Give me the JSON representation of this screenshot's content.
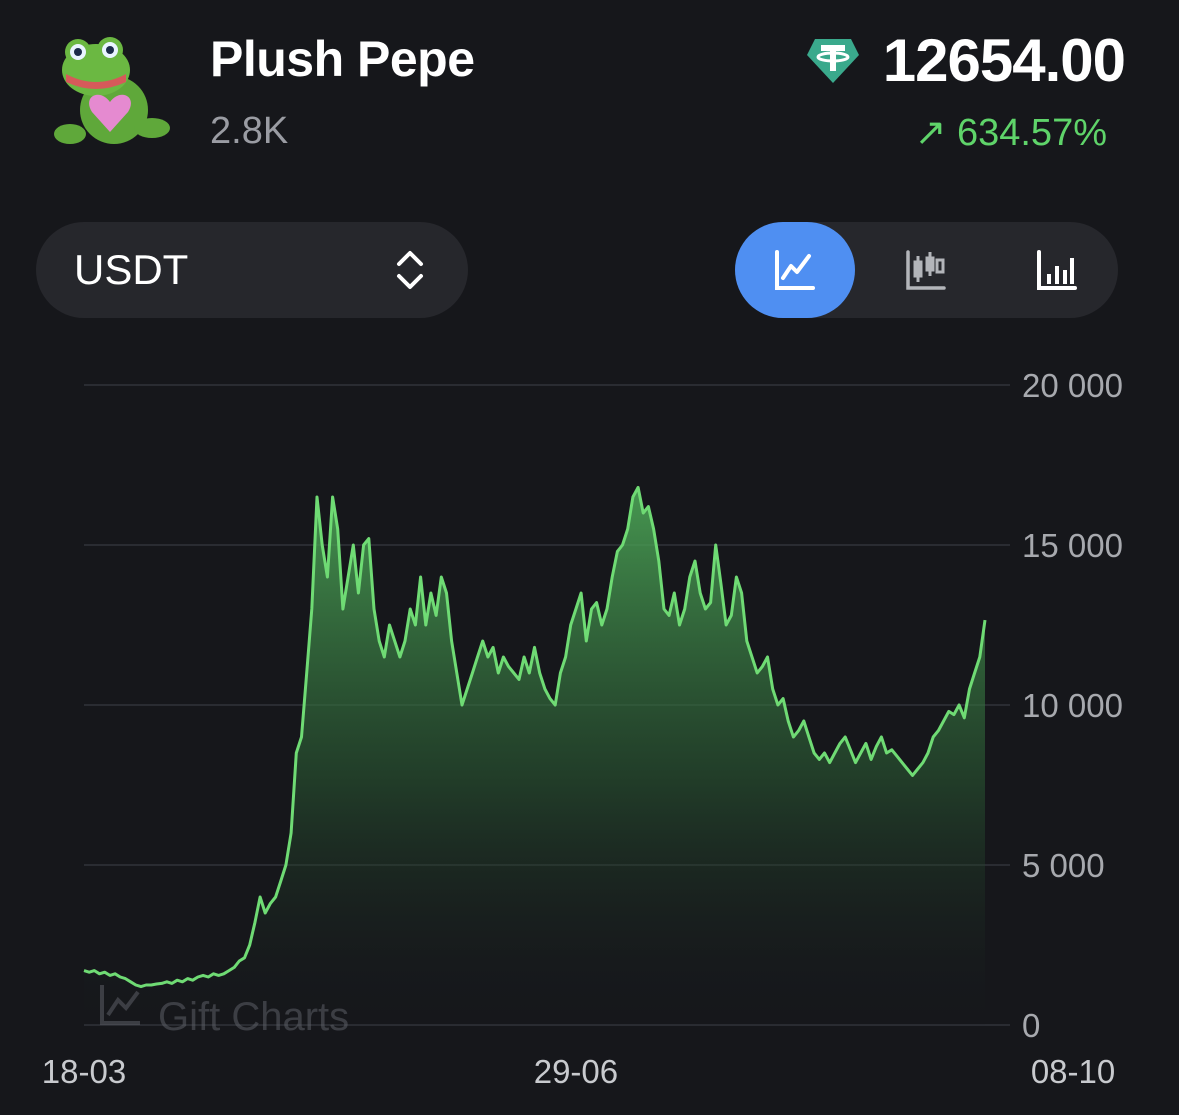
{
  "header": {
    "title": "Plush Pepe",
    "count": "2.8K",
    "price": "12654.00",
    "change": "↗ 634.57%",
    "avatar_icon": "plush-pepe-frog-icon",
    "currency_icon": "tether-icon"
  },
  "controls": {
    "currency": "USDT",
    "currency_icon": "updown-chevron-icon",
    "chart_modes": [
      {
        "icon": "line-chart-icon",
        "active": true
      },
      {
        "icon": "candlestick-chart-icon",
        "active": false
      },
      {
        "icon": "bar-chart-icon",
        "active": false
      }
    ]
  },
  "watermark": "Gift Charts",
  "colors": {
    "background": "#16171b",
    "line": "#6fdb74",
    "change_positive": "#5fd46a",
    "active_button": "#4f8ff2",
    "control_bg": "#26272c"
  },
  "chart_data": {
    "type": "area",
    "x_tick_labels": [
      "18-03",
      "29-06",
      "08-10"
    ],
    "x_tick_index": [
      0,
      95,
      191
    ],
    "y_ticks": [
      0,
      5000,
      10000,
      15000,
      20000
    ],
    "y_tick_labels": [
      "0",
      "5 000",
      "10 000",
      "15 000",
      "20 000"
    ],
    "ylim": [
      0,
      20000
    ],
    "y_axis_position": "right",
    "grid": true,
    "values": [
      1700,
      1650,
      1700,
      1600,
      1650,
      1550,
      1600,
      1500,
      1450,
      1350,
      1250,
      1200,
      1250,
      1250,
      1280,
      1300,
      1350,
      1300,
      1400,
      1350,
      1450,
      1400,
      1500,
      1550,
      1500,
      1600,
      1550,
      1600,
      1700,
      1800,
      2000,
      2100,
      2500,
      3200,
      4000,
      3500,
      3800,
      4000,
      4500,
      5000,
      6000,
      8500,
      9000,
      11000,
      13000,
      16500,
      15000,
      14000,
      16500,
      15500,
      13000,
      14000,
      15000,
      13500,
      15000,
      15200,
      13000,
      12000,
      11500,
      12500,
      12000,
      11500,
      12000,
      13000,
      12500,
      14000,
      12500,
      13500,
      12800,
      14000,
      13500,
      12000,
      11000,
      10000,
      10500,
      11000,
      11500,
      12000,
      11500,
      11800,
      11000,
      11500,
      11200,
      11000,
      10800,
      11500,
      11000,
      11800,
      11000,
      10500,
      10200,
      10000,
      11000,
      11500,
      12500,
      13000,
      13500,
      12000,
      13000,
      13200,
      12500,
      13000,
      14000,
      14800,
      15000,
      15500,
      16500,
      16800,
      16000,
      16200,
      15500,
      14500,
      13000,
      12800,
      13500,
      12500,
      13000,
      14000,
      14500,
      13500,
      13000,
      13200,
      15000,
      13800,
      12500,
      12800,
      14000,
      13500,
      12000,
      11500,
      11000,
      11200,
      11500,
      10500,
      10000,
      10200,
      9500,
      9000,
      9200,
      9500,
      9000,
      8500,
      8300,
      8500,
      8200,
      8500,
      8800,
      9000,
      8600,
      8200,
      8500,
      8800,
      8300,
      8700,
      9000,
      8500,
      8600,
      8400,
      8200,
      8000,
      7800,
      8000,
      8200,
      8500,
      9000,
      9200,
      9500,
      9800,
      9700,
      10000,
      9600,
      10500,
      11000,
      11500,
      12654
    ]
  }
}
